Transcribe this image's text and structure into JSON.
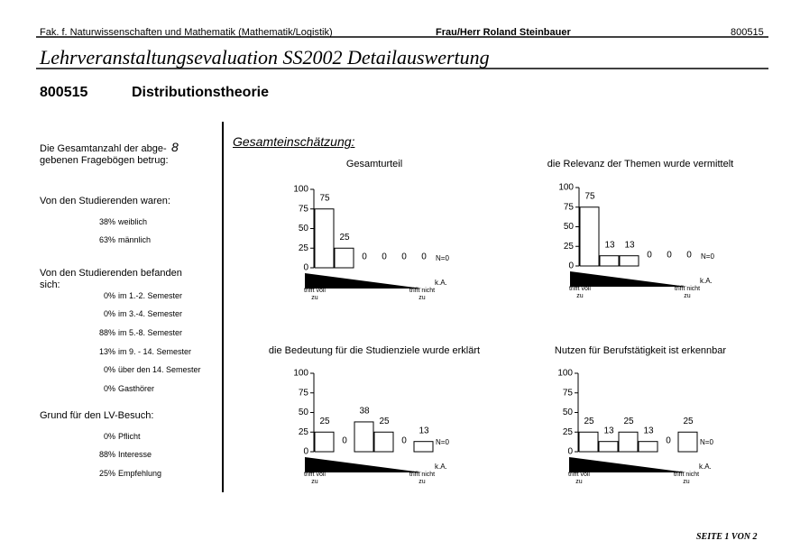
{
  "header": {
    "faculty": "Fak. f. Naturwissenschaften und Mathematik (Mathematik/Logistik)",
    "lecturer": "Frau/Herr Roland Steinbauer",
    "code": "800515"
  },
  "title": "Lehrveranstaltungsevaluation SS2002 Detailauswertung",
  "course": {
    "code": "800515",
    "name": "Distributionstheorie"
  },
  "summary": {
    "total": {
      "label": [
        "Die Gesamtanzahl der abge-",
        "gebenen Fragebögen betrug:"
      ],
      "value": "8"
    },
    "groups": [
      {
        "heading": "Von den Studierenden waren:",
        "items": [
          {
            "share": "38%",
            "label": "weiblich"
          },
          {
            "share": "63%",
            "label": "männlich"
          }
        ]
      },
      {
        "heading": "Von den Studierenden befanden sich:",
        "items": [
          {
            "share": "0%",
            "label": "im 1.-2. Semester"
          },
          {
            "share": "0%",
            "label": "im 3.-4. Semester"
          },
          {
            "share": "88%",
            "label": "im 5.-8. Semester"
          },
          {
            "share": "13%",
            "label": "im 9. - 14. Semester"
          },
          {
            "share": "0%",
            "label": "über den 14. Semester"
          },
          {
            "share": "0%",
            "label": "Gasthörer"
          }
        ]
      },
      {
        "heading": "Grund für den LV-Besuch:",
        "items": [
          {
            "share": "0%",
            "label": "Pflicht"
          },
          {
            "share": "88%",
            "label": "Interesse"
          },
          {
            "share": "25%",
            "label": "Empfehlung"
          }
        ]
      }
    ]
  },
  "section": "Gesamteinschätzung:",
  "scale": {
    "left": "trifft voll zu",
    "right": "trifft nicht zu",
    "none": "k.A."
  },
  "charts": [
    {
      "type": "bar",
      "title": "Gesamturteil",
      "values": [
        75,
        25,
        0,
        0,
        0,
        0
      ],
      "n_label": "N=0",
      "ylim": [
        0,
        100
      ],
      "yticks": [
        0,
        25,
        50,
        75,
        100
      ]
    },
    {
      "type": "bar",
      "title": "die Relevanz der Themen wurde vermittelt",
      "values": [
        75,
        13,
        13,
        0,
        0,
        0
      ],
      "n_label": "N=0",
      "ylim": [
        0,
        100
      ],
      "yticks": [
        0,
        25,
        50,
        75,
        100
      ]
    },
    {
      "type": "bar",
      "title": "die Bedeutung für die Studienziele wurde erklärt",
      "values": [
        25,
        0,
        38,
        25,
        0,
        13
      ],
      "n_label": "N=0",
      "ylim": [
        0,
        100
      ],
      "yticks": [
        0,
        25,
        50,
        75,
        100
      ]
    },
    {
      "type": "bar",
      "title": "Nutzen für Berufstätigkeit ist erkennbar",
      "values": [
        25,
        13,
        25,
        13,
        0,
        25
      ],
      "n_label": "N=0",
      "ylim": [
        0,
        100
      ],
      "yticks": [
        0,
        25,
        50,
        75,
        100
      ]
    }
  ],
  "footer": "SEITE 1 VON 2"
}
